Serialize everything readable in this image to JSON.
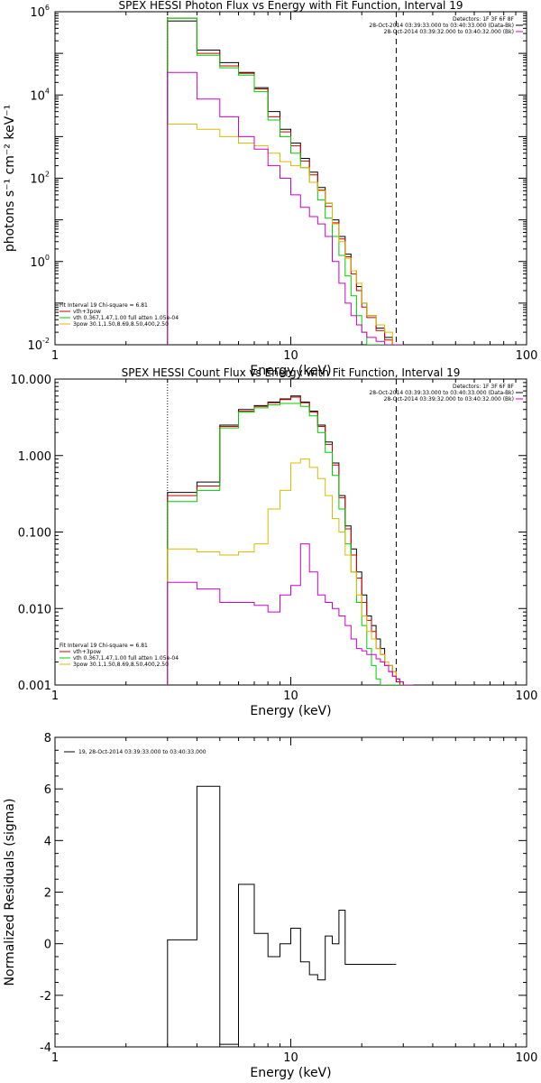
{
  "chart_data": [
    {
      "type": "line",
      "title": "SPEX HESSI Photon Flux vs Energy with Fit Function, Interval 19",
      "xlabel": "Energy (keV)",
      "ylabel": "photons s⁻¹ cm⁻² keV⁻¹",
      "xscale": "log",
      "yscale": "log",
      "xlim": [
        1,
        100
      ],
      "ylim": [
        0.01,
        1000000
      ],
      "x_ticks": [
        {
          "v": 1,
          "label": "1"
        },
        {
          "v": 10,
          "label": "10"
        },
        {
          "v": 100,
          "label": "100"
        }
      ],
      "y_ticks": [
        {
          "v": 0.01,
          "base": "10",
          "exp": "-2"
        },
        {
          "v": 1,
          "base": "10",
          "exp": "0"
        },
        {
          "v": 100,
          "base": "10",
          "exp": "2"
        },
        {
          "v": 10000,
          "base": "10",
          "exp": "4"
        },
        {
          "v": 1000000,
          "base": "10",
          "exp": "6"
        }
      ],
      "legend_topright": [
        "Detectors: 1F 3F 6F 8F",
        "28-Oct-2014 03:39:33.000 to 03:40:33.000 (Data-Bk)",
        "28-Oct-2014 03:39:32.000 to 03:40:32.000 (Bk)"
      ],
      "legend_bottomleft": [
        "Fit Interval 19   Chi-square = 6.81",
        "vth+3pow",
        "vth 0.367,1.47,1.00  full atten 1.05e-04",
        "3pow 30.1,1.50,8.69,8.50,400,2.50"
      ],
      "vlines": [
        {
          "x": 3,
          "style": "dotted"
        },
        {
          "x": 28,
          "style": "dashed"
        }
      ],
      "bin_edges": [
        3,
        3.5,
        4,
        4.5,
        5,
        5.5,
        6,
        6.5,
        7,
        7.5,
        8,
        8.5,
        9,
        9.5,
        10,
        10.5,
        11,
        11.5,
        12,
        12.5,
        13,
        14,
        15,
        16,
        17,
        18,
        19,
        20,
        21,
        22,
        23,
        24,
        25,
        26,
        27,
        28,
        30
      ],
      "series": [
        {
          "name": "Data-Bk",
          "color": "#000000",
          "values": [
            600000,
            600000,
            120000,
            120000,
            60000,
            60000,
            35000,
            35000,
            15000,
            15000,
            4000,
            4000,
            1500,
            1500,
            700,
            700,
            300,
            300,
            140,
            140,
            60,
            25,
            10,
            4,
            1.5,
            0.6,
            0.25,
            0.1,
            0.05,
            0.05,
            0.025,
            0.025,
            0.015,
            0.015,
            0.01,
            0.01
          ]
        },
        {
          "name": "vth+3pow",
          "color": "#cc0000",
          "values": [
            700000,
            700000,
            100000,
            100000,
            50000,
            50000,
            33000,
            33000,
            14000,
            14000,
            3000,
            3000,
            1300,
            1300,
            600,
            600,
            260,
            260,
            120,
            120,
            52,
            21,
            8.5,
            3.5,
            1.3,
            0.5,
            0.2,
            0.08,
            0.045,
            0.045,
            0.022,
            0.022,
            0.013,
            0.013,
            0.01,
            0.01
          ]
        },
        {
          "name": "vth",
          "color": "#00cc00",
          "values": [
            700000,
            700000,
            90000,
            90000,
            45000,
            45000,
            30000,
            30000,
            12000,
            12000,
            2500,
            2500,
            1000,
            1000,
            400,
            400,
            180,
            180,
            80,
            80,
            30,
            11,
            4,
            1.4,
            0.45,
            0.15,
            0.05,
            0.02,
            0.01,
            0.01,
            0.01,
            0.01,
            0.01,
            0.01,
            0.01,
            0.01
          ]
        },
        {
          "name": "3pow",
          "color": "#ddbb00",
          "values": [
            2000,
            2000,
            1500,
            1500,
            1000,
            1000,
            700,
            700,
            600,
            600,
            400,
            400,
            250,
            250,
            200,
            200,
            180,
            180,
            80,
            80,
            50,
            25,
            8,
            3,
            1.2,
            0.6,
            0.3,
            0.1,
            0.05,
            0.05,
            0.03,
            0.03,
            0.02,
            0.02,
            0.01,
            0.01
          ]
        },
        {
          "name": "Bk",
          "color": "#cc00cc",
          "values": [
            35000,
            35000,
            8000,
            8000,
            3000,
            3000,
            1000,
            1000,
            500,
            500,
            200,
            200,
            100,
            100,
            40,
            40,
            20,
            20,
            12,
            12,
            8,
            4,
            1,
            0.3,
            0.1,
            0.05,
            0.03,
            0.02,
            0.015,
            0.015,
            0.012,
            0.012,
            0.01,
            0.01,
            0.01,
            0.01
          ]
        }
      ]
    },
    {
      "type": "line",
      "title": "SPEX HESSI Count Flux vs Energy with Fit Function, Interval 19",
      "xlabel": "Energy (keV)",
      "ylabel": "",
      "xscale": "log",
      "yscale": "log",
      "xlim": [
        1,
        100
      ],
      "ylim": [
        0.001,
        10
      ],
      "x_ticks": [
        {
          "v": 1,
          "label": "1"
        },
        {
          "v": 10,
          "label": "10"
        },
        {
          "v": 100,
          "label": "100"
        }
      ],
      "y_ticks": [
        {
          "v": 0.001,
          "label": "0.001"
        },
        {
          "v": 0.01,
          "label": "0.010"
        },
        {
          "v": 0.1,
          "label": "0.100"
        },
        {
          "v": 1,
          "label": "1.000"
        },
        {
          "v": 10,
          "label": "10.000"
        }
      ],
      "legend_topright": [
        "Detectors: 1F 3F 6F 8F",
        "28-Oct-2014 03:39:33.000 to 03:40:33.000 (Data-Bk)",
        "28-Oct-2014 03:39:32.000 to 03:40:32.000 (Bk)"
      ],
      "legend_bottomleft": [
        "Fit Interval 19   Chi-square = 6.81",
        "vth+3pow",
        "vth 0.367,1.47,1.00  full atten 1.05e-04",
        "3pow 30.1,1.50,8.69,8.50,400,2.50"
      ],
      "vlines": [
        {
          "x": 3,
          "style": "dotted"
        },
        {
          "x": 28,
          "style": "dashed"
        }
      ],
      "bin_edges": [
        3,
        4,
        5,
        6,
        7,
        8,
        9,
        10,
        11,
        12,
        13,
        14,
        15,
        16,
        17,
        18,
        19,
        20,
        21,
        22,
        23,
        24,
        25,
        26,
        27,
        28,
        29,
        30,
        31,
        33
      ],
      "series": [
        {
          "name": "Data-Bk",
          "color": "#000000",
          "values": [
            0.33,
            0.45,
            2.5,
            4.0,
            4.5,
            5.0,
            5.5,
            6.0,
            5.0,
            3.8,
            2.5,
            1.5,
            0.8,
            0.3,
            0.12,
            0.06,
            0.03,
            0.015,
            0.008,
            0.006,
            0.004,
            0.003,
            0.002,
            0.0018,
            0.0015,
            0.0012,
            0.0011,
            0.001,
            0.001
          ]
        },
        {
          "name": "vth+3pow",
          "color": "#cc0000",
          "values": [
            0.3,
            0.4,
            2.4,
            3.8,
            4.4,
            4.9,
            5.4,
            5.8,
            4.9,
            3.7,
            2.4,
            1.4,
            0.75,
            0.28,
            0.11,
            0.05,
            0.025,
            0.012,
            0.007,
            0.005,
            0.003,
            0.0025,
            0.0018,
            0.0015,
            0.0013,
            0.0011,
            0.001,
            0.001,
            0.001
          ]
        },
        {
          "name": "vth",
          "color": "#00cc00",
          "values": [
            0.25,
            0.35,
            2.3,
            3.7,
            4.2,
            4.6,
            4.8,
            4.8,
            4.4,
            3.3,
            2.0,
            1.1,
            0.55,
            0.2,
            0.07,
            0.03,
            0.012,
            0.006,
            0.003,
            0.0018,
            0.0012,
            0.001,
            0.001,
            0.001,
            0.001,
            0.001,
            0.001,
            0.001,
            0.001
          ]
        },
        {
          "name": "3pow",
          "color": "#ddbb00",
          "values": [
            0.06,
            0.055,
            0.05,
            0.055,
            0.07,
            0.2,
            0.35,
            0.8,
            0.9,
            0.7,
            0.5,
            0.3,
            0.15,
            0.1,
            0.05,
            0.03,
            0.015,
            0.008,
            0.005,
            0.004,
            0.003,
            0.0025,
            0.002,
            0.0018,
            0.0015,
            0.0012,
            0.0011,
            0.001,
            0.001
          ]
        },
        {
          "name": "Bk",
          "color": "#cc00cc",
          "values": [
            0.022,
            0.018,
            0.012,
            0.012,
            0.011,
            0.009,
            0.015,
            0.02,
            0.07,
            0.03,
            0.015,
            0.012,
            0.01,
            0.008,
            0.006,
            0.004,
            0.003,
            0.0028,
            0.0025,
            0.0025,
            0.0022,
            0.002,
            0.0018,
            0.0015,
            0.0013,
            0.0012,
            0.0011,
            0.001,
            0.001
          ]
        }
      ]
    },
    {
      "type": "line",
      "title": "",
      "xlabel": "Energy (keV)",
      "ylabel": "Normalized Residuals (sigma)",
      "xscale": "log",
      "yscale": "linear",
      "xlim": [
        1,
        100
      ],
      "ylim": [
        -4,
        8
      ],
      "x_ticks": [
        {
          "v": 1,
          "label": "1"
        },
        {
          "v": 10,
          "label": "10"
        },
        {
          "v": 100,
          "label": "100"
        }
      ],
      "y_ticks": [
        {
          "v": -4,
          "label": "-4"
        },
        {
          "v": -2,
          "label": "-2"
        },
        {
          "v": 0,
          "label": "0"
        },
        {
          "v": 2,
          "label": "2"
        },
        {
          "v": 4,
          "label": "4"
        },
        {
          "v": 6,
          "label": "6"
        },
        {
          "v": 8,
          "label": "8"
        }
      ],
      "legend_topleft": [
        "19, 28-Oct-2014 03:39:33.000 to 03:40:33.000"
      ],
      "vlines": [],
      "bin_edges": [
        3,
        4,
        5,
        6,
        7,
        8,
        9,
        10,
        11,
        12,
        13,
        14,
        15,
        16,
        17,
        18,
        19,
        20,
        21,
        22,
        23,
        24,
        25,
        26,
        27,
        28
      ],
      "series": [
        {
          "name": "19, 28-Oct-2014 03:39:33.000 to 03:40:33.000",
          "color": "#000000",
          "values": [
            0.15,
            6.1,
            -3.9,
            2.3,
            0.4,
            -0.5,
            0.0,
            0.6,
            -0.7,
            -1.2,
            -1.4,
            0.3,
            0.0,
            1.3,
            -0.8,
            -0.8,
            -0.8,
            -0.8,
            -0.8,
            -0.8,
            -0.8,
            -0.8,
            -0.8,
            -0.8,
            -0.8
          ]
        }
      ]
    }
  ]
}
